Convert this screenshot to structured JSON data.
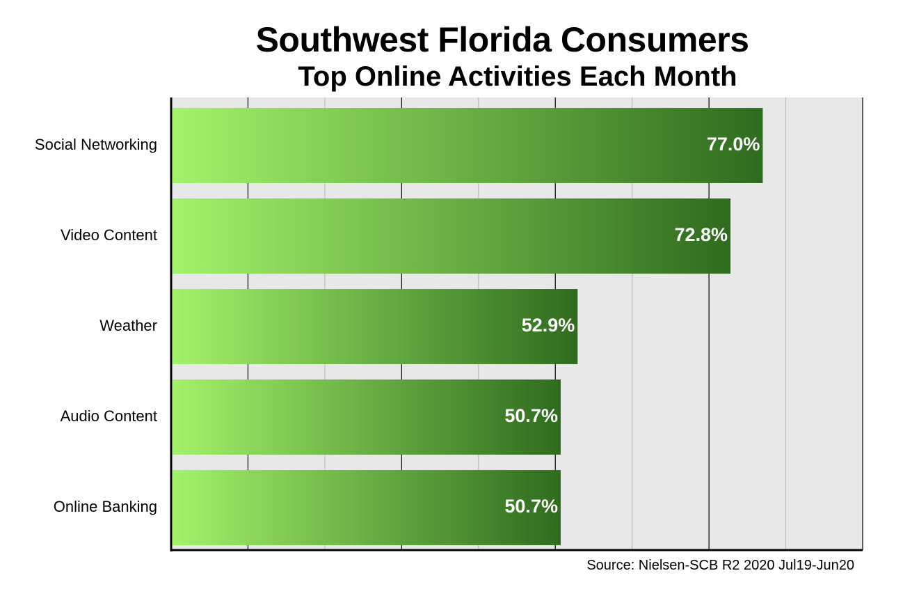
{
  "chart_data": {
    "type": "bar",
    "orientation": "horizontal",
    "title": "Southwest Florida Consumers",
    "subtitle": "Top Online Activities Each Month",
    "categories": [
      "Social Networking",
      "Video Content",
      "Weather",
      "Audio Content",
      "Online Banking"
    ],
    "values": [
      77.0,
      72.8,
      52.9,
      50.7,
      50.7
    ],
    "data_labels": [
      "77.0%",
      "72.8%",
      "52.9%",
      "50.7%",
      "50.7%"
    ],
    "xlim": [
      0,
      90
    ],
    "grid": true,
    "legend": "none",
    "colors": {
      "bar_start": "#a3f26a",
      "bar_end": "#2f6b1e",
      "plot_bg": "#e8e8e8",
      "label": "#ffffff"
    }
  },
  "source": "Source: Nielsen-SCB R2 2020 Jul19-Jun20"
}
